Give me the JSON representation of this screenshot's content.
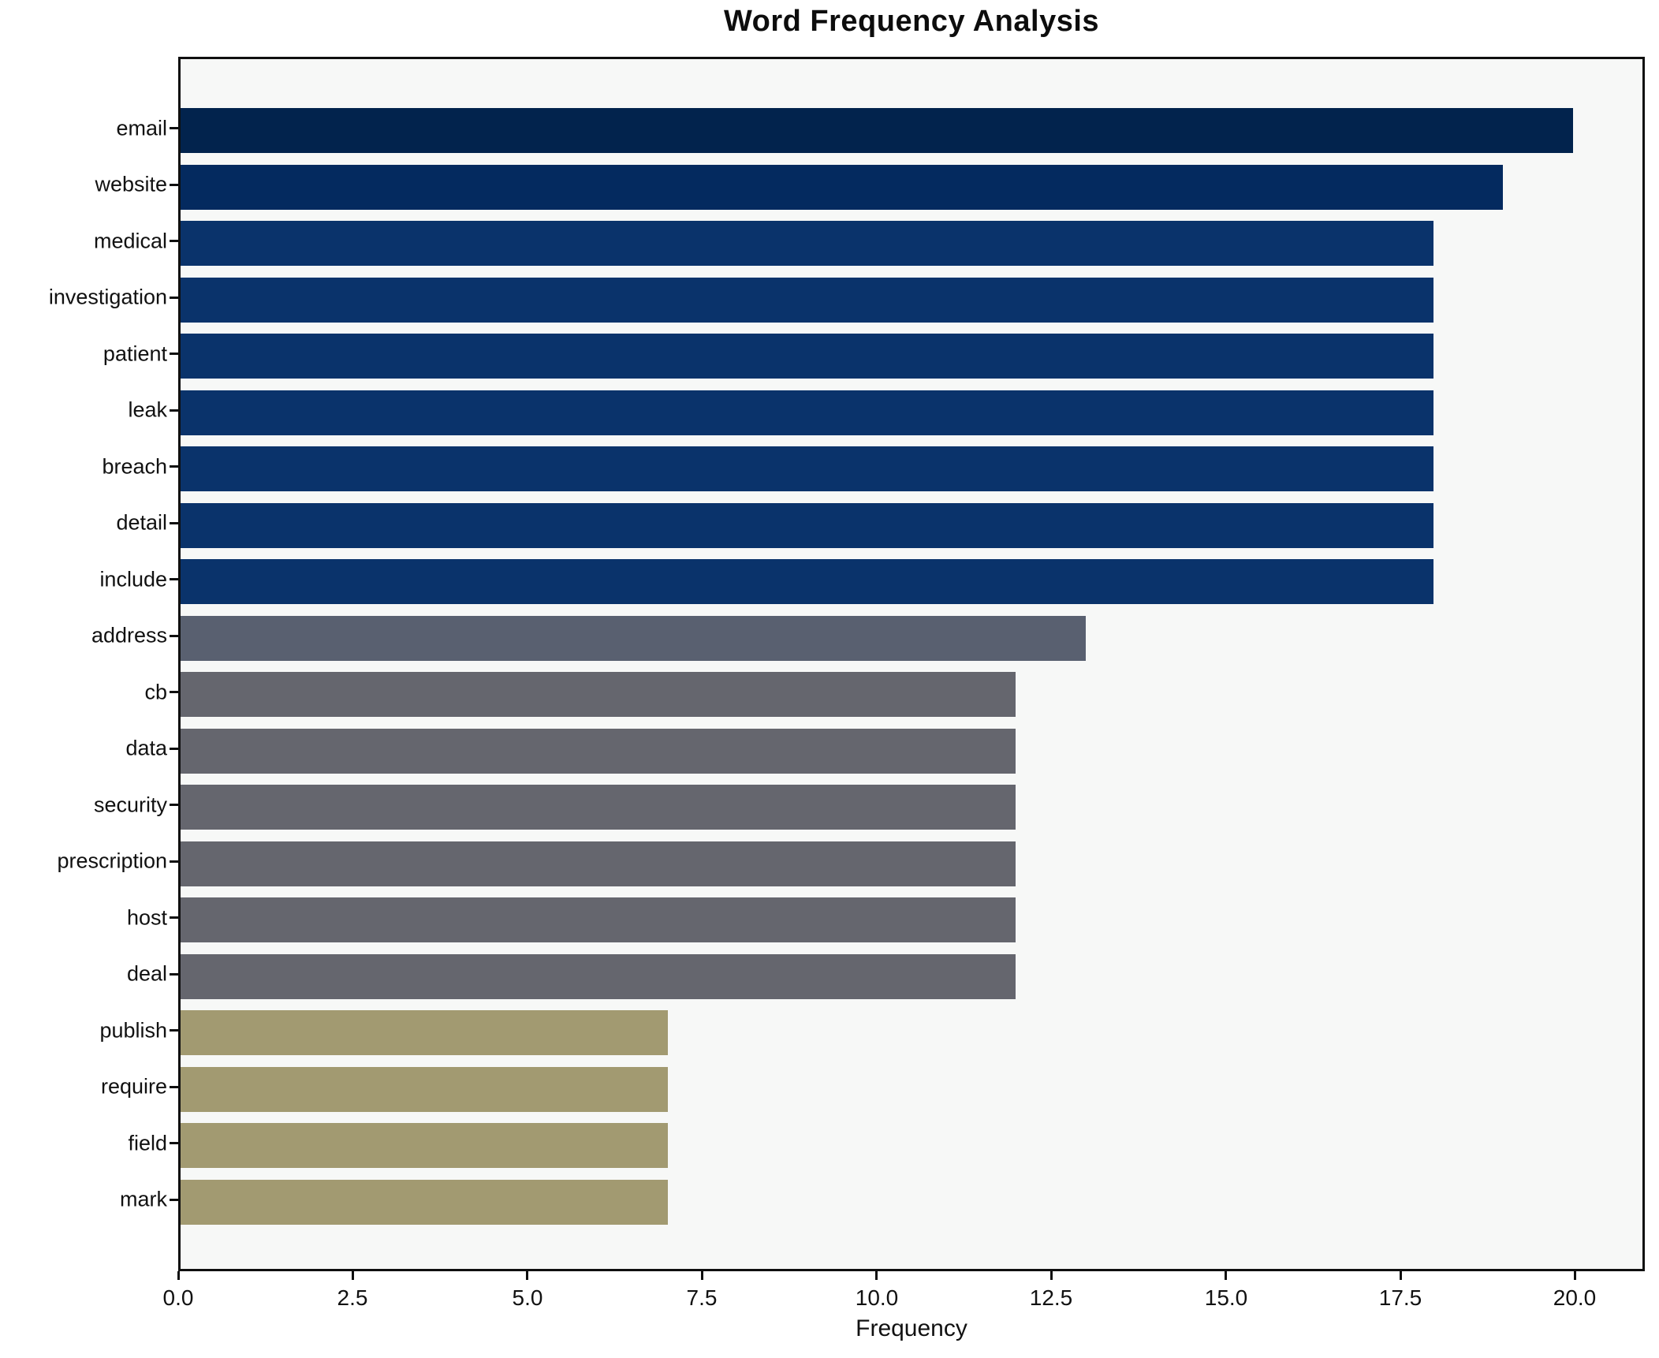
{
  "figure": {
    "background_color": "#ffffff",
    "plot_background_color": "#f7f8f7",
    "spine_color": "#0f0f0f",
    "text_color": "#111111"
  },
  "chart_data": {
    "type": "bar",
    "orientation": "horizontal",
    "title": "Word Frequency Analysis",
    "xlabel": "Frequency",
    "ylabel": "",
    "xlim": [
      0,
      21
    ],
    "grid": false,
    "legend_position": "none",
    "xticks": [
      {
        "value": 0,
        "label": "0.0"
      },
      {
        "value": 2.5,
        "label": "2.5"
      },
      {
        "value": 5,
        "label": "5.0"
      },
      {
        "value": 7.5,
        "label": "7.5"
      },
      {
        "value": 10,
        "label": "10.0"
      },
      {
        "value": 12.5,
        "label": "12.5"
      },
      {
        "value": 15,
        "label": "15.0"
      },
      {
        "value": 17.5,
        "label": "17.5"
      },
      {
        "value": 20,
        "label": "20.0"
      }
    ],
    "categories": [
      "email",
      "website",
      "medical",
      "investigation",
      "patient",
      "leak",
      "breach",
      "detail",
      "include",
      "address",
      "cb",
      "data",
      "security",
      "prescription",
      "host",
      "deal",
      "publish",
      "require",
      "field",
      "mark"
    ],
    "values": [
      20,
      19,
      18,
      18,
      18,
      18,
      18,
      18,
      18,
      13,
      12,
      12,
      12,
      12,
      12,
      12,
      7,
      7,
      7,
      7
    ],
    "bar_colors": [
      "#02234d",
      "#042a5f",
      "#0a336b",
      "#0a336b",
      "#0a336b",
      "#0a336b",
      "#0a336b",
      "#0a336b",
      "#0a336b",
      "#596070",
      "#65666e",
      "#65666e",
      "#65666e",
      "#65666e",
      "#65666e",
      "#65666e",
      "#a29a71",
      "#a29a71",
      "#a29a71",
      "#a29a71"
    ]
  }
}
